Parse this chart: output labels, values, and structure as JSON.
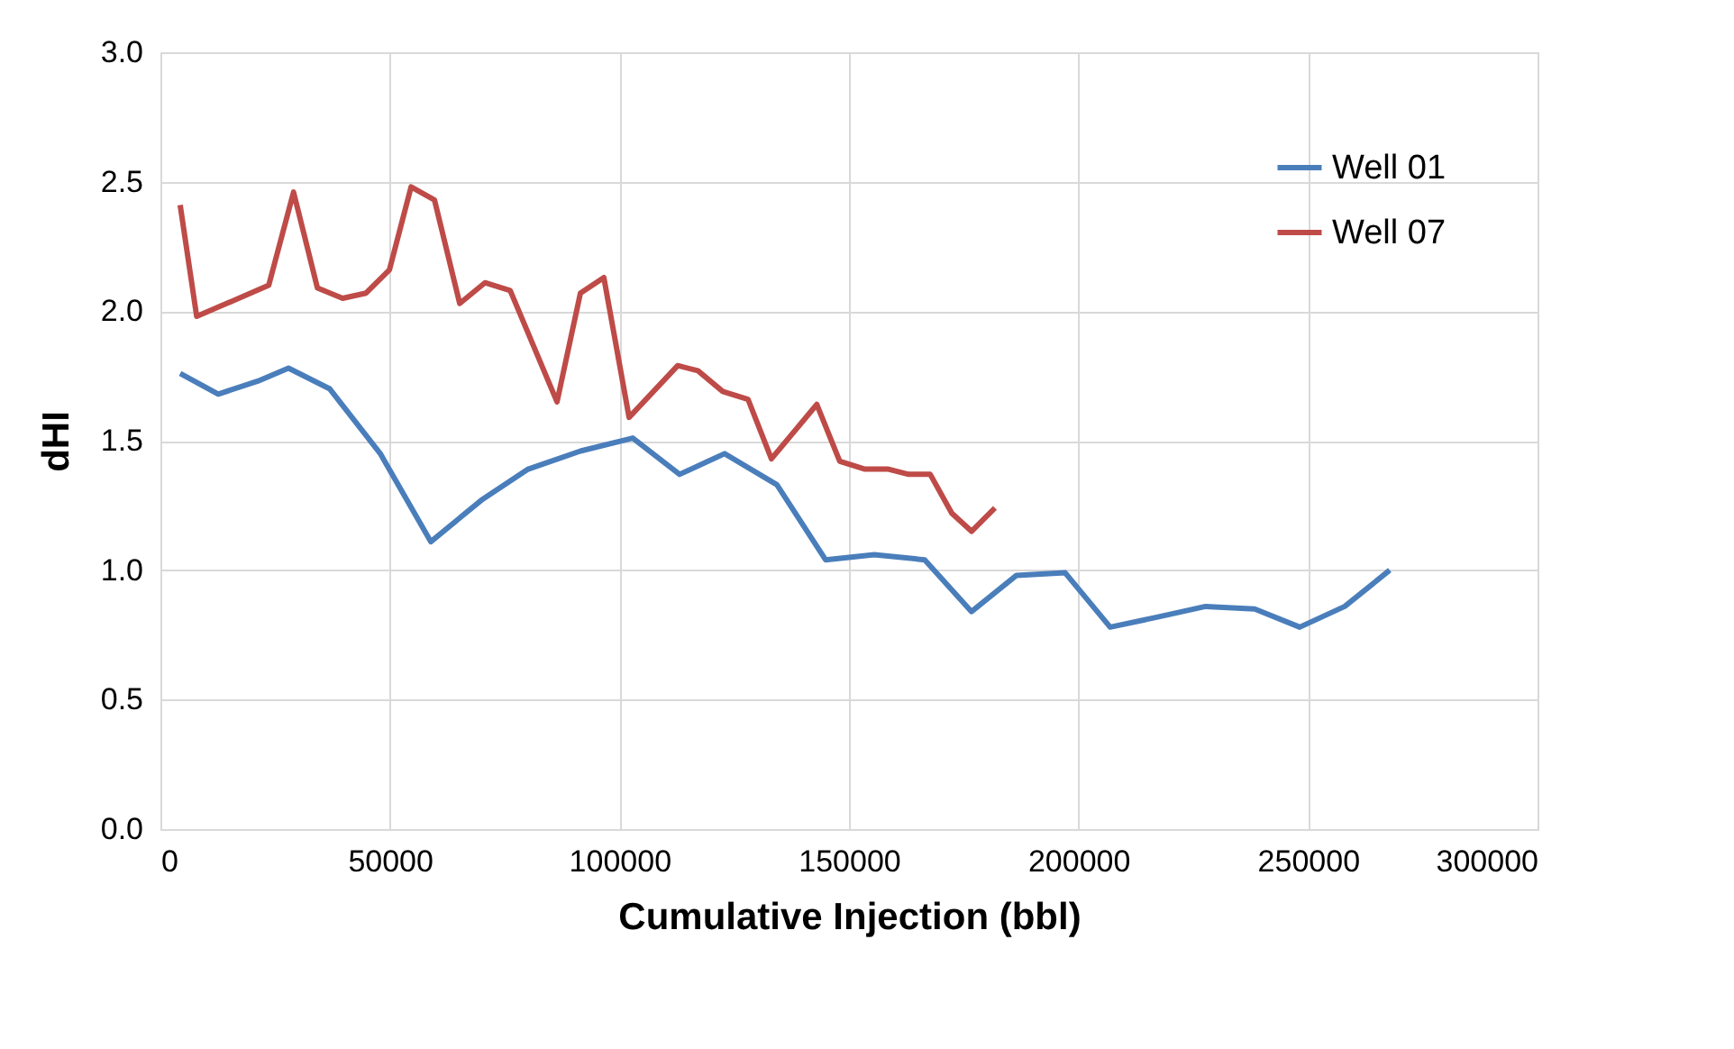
{
  "chart_data": {
    "type": "line",
    "xlabel": "Cumulative Injection (bbl)",
    "ylabel": "dHI",
    "xlim": [
      0,
      300000
    ],
    "xticks": [
      0,
      50000,
      100000,
      150000,
      200000,
      250000,
      300000
    ],
    "ylim": [
      0,
      3.0
    ],
    "yticks": [
      {
        "value": 0,
        "label": "0.0"
      },
      {
        "value": 0.5,
        "label": "0.5"
      },
      {
        "value": 1,
        "label": "1.0"
      },
      {
        "value": 1.5,
        "label": "1.5"
      },
      {
        "value": 2,
        "label": "2.0"
      },
      {
        "value": 2.5,
        "label": "2.5"
      },
      {
        "value": 3,
        "label": "3.0"
      }
    ],
    "grid": true,
    "legend": "top right",
    "line_style": "solid",
    "series": [
      {
        "name": "Well 01",
        "color": "#4a7ebb",
        "x": [
          4300,
          12600,
          21200,
          27900,
          36900,
          47900,
          58900,
          69900,
          80100,
          91500,
          102900,
          113100,
          122900,
          134300,
          144900,
          155500,
          166500,
          176700,
          186500,
          197100,
          206900,
          217500,
          227700,
          238400,
          248200,
          258000,
          267800
        ],
        "values": [
          1.76,
          1.68,
          1.73,
          1.78,
          1.7,
          1.45,
          1.11,
          1.27,
          1.39,
          1.46,
          1.51,
          1.37,
          1.45,
          1.33,
          1.04,
          1.06,
          1.04,
          0.84,
          0.98,
          0.99,
          0.78,
          0.82,
          0.86,
          0.85,
          0.78,
          0.86,
          1.0
        ]
      },
      {
        "name": "Well 07",
        "color": "#be4b48",
        "x": [
          4300,
          7900,
          23600,
          29000,
          34200,
          39700,
          44800,
          49900,
          54600,
          59700,
          65200,
          70700,
          76200,
          86400,
          91500,
          96600,
          102100,
          112700,
          117100,
          122500,
          128000,
          133100,
          143000,
          148000,
          153500,
          158600,
          163000,
          167700,
          172400,
          176700,
          181800
        ],
        "values": [
          2.41,
          1.98,
          2.1,
          2.46,
          2.09,
          2.05,
          2.07,
          2.16,
          2.48,
          2.43,
          2.03,
          2.11,
          2.08,
          1.65,
          2.07,
          2.13,
          1.59,
          1.79,
          1.77,
          1.69,
          1.66,
          1.43,
          1.64,
          1.42,
          1.39,
          1.39,
          1.37,
          1.37,
          1.22,
          1.15,
          1.24
        ]
      }
    ]
  }
}
